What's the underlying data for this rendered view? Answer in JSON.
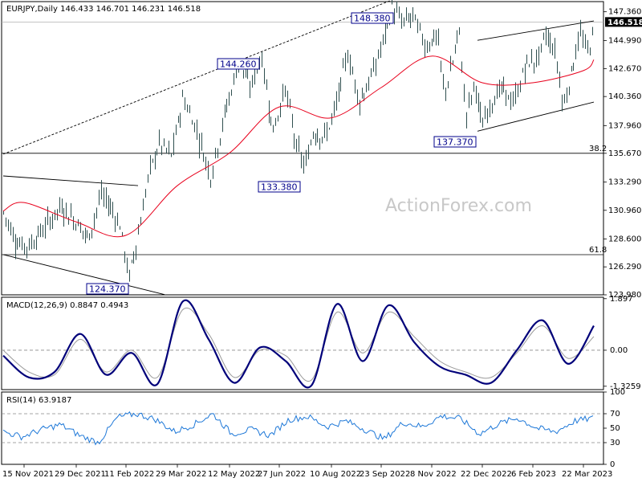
{
  "header": {
    "symbol": "EURJPY",
    "timeframe": "Daily",
    "title": "EURJPY,Daily  146.433 146.701 146.231 146.518"
  },
  "watermark": "ActionForex.com",
  "colors": {
    "bars": "#2f4f4f",
    "moving_average": "#e8001c",
    "macd": "#00007a",
    "signal": "#9a9a9a",
    "rsi": "#1e78d8",
    "annotation": "#00008b"
  },
  "chart_data": [
    {
      "type": "ohlc",
      "panel": "price",
      "ylim": [
        123.98,
        148.2
      ],
      "y_ticks": [
        "147.360",
        "144.990",
        "142.670",
        "140.360",
        "137.960",
        "135.670",
        "133.290",
        "130.960",
        "128.600",
        "126.290",
        "123.980"
      ],
      "last_price": "146.518",
      "ohlc_last": {
        "open": 146.433,
        "high": 146.701,
        "low": 146.231,
        "close": 146.518
      },
      "x_labels": [
        "15 Nov 2021",
        "29 Dec 2021",
        "11 Feb 2022",
        "29 Mar 2022",
        "12 May 2022",
        "27 Jun 2022",
        "10 Aug 2022",
        "23 Sep 2022",
        "8 Nov 2022",
        "22 Dec 2022",
        "6 Feb 2023",
        "22 Mar 2023"
      ],
      "moving_average": [
        {
          "date": "15 Nov 2021",
          "value": 131.6
        },
        {
          "date": "29 Dec 2021",
          "value": 130.0
        },
        {
          "date": "11 Feb 2022",
          "value": 128.9
        },
        {
          "date": "29 Mar 2022",
          "value": 133.0
        },
        {
          "date": "12 May 2022",
          "value": 135.7
        },
        {
          "date": "27 Jun 2022",
          "value": 139.5
        },
        {
          "date": "10 Aug 2022",
          "value": 138.6
        },
        {
          "date": "23 Sep 2022",
          "value": 141.1
        },
        {
          "date": "8 Nov 2022",
          "value": 143.7
        },
        {
          "date": "22 Dec 2022",
          "value": 141.5
        },
        {
          "date": "6 Feb 2023",
          "value": 141.5
        },
        {
          "date": "22 Mar 2023",
          "value": 142.5
        },
        {
          "date": "end",
          "value": 143.4
        }
      ],
      "swing_labels": [
        {
          "text": "148.380",
          "value": 148.38,
          "date": "23 Sep 2022"
        },
        {
          "text": "144.260",
          "value": 144.26,
          "date": "12 May 2022"
        },
        {
          "text": "133.380",
          "value": 133.38,
          "date": "27 Jun 2022"
        },
        {
          "text": "137.370",
          "value": 137.37,
          "date": "22 Dec 2022"
        },
        {
          "text": "124.370",
          "value": 124.37,
          "date": "11 Feb 2022"
        }
      ],
      "fibonacci_levels": [
        {
          "label": "38.2",
          "value": 135.67
        },
        {
          "label": "61.8",
          "value": 127.3
        }
      ]
    },
    {
      "type": "line",
      "panel": "macd",
      "title": "MACD(12,26,9) 0.8847 0.4943",
      "ylim": [
        -1.45,
        1.95
      ],
      "y_ticks": [
        "1.897",
        "0.00",
        "-1.3259"
      ],
      "series": [
        {
          "name": "MACD",
          "values": [
            -0.2,
            -1.0,
            -0.8,
            0.6,
            -0.9,
            -0.1,
            -1.25,
            1.8,
            0.4,
            -1.2,
            0.1,
            -0.4,
            -1.3,
            1.7,
            -0.4,
            1.65,
            0.3,
            -0.6,
            -0.9,
            -1.2,
            0.0,
            1.1,
            -0.5,
            0.9
          ]
        },
        {
          "name": "Signal",
          "values": [
            0.0,
            -0.8,
            -0.9,
            0.4,
            -0.8,
            0.0,
            -1.0,
            1.5,
            0.6,
            -1.0,
            0.0,
            -0.2,
            -1.1,
            1.4,
            -0.1,
            1.4,
            0.5,
            -0.4,
            -0.8,
            -1.0,
            -0.1,
            0.9,
            -0.3,
            0.5
          ]
        }
      ]
    },
    {
      "type": "line",
      "panel": "rsi",
      "title": "RSI(14) 63.9187",
      "ylim": [
        0,
        100
      ],
      "y_ticks": [
        "100",
        "70",
        "50",
        "30",
        "0"
      ],
      "series": [
        {
          "name": "RSI",
          "values": [
            45,
            38,
            48,
            55,
            40,
            30,
            65,
            70,
            62,
            45,
            55,
            70,
            42,
            48,
            40,
            62,
            66,
            52,
            60,
            48,
            35,
            58,
            52,
            67,
            63,
            42,
            56,
            64,
            50,
            45,
            60,
            64
          ]
        }
      ]
    }
  ]
}
